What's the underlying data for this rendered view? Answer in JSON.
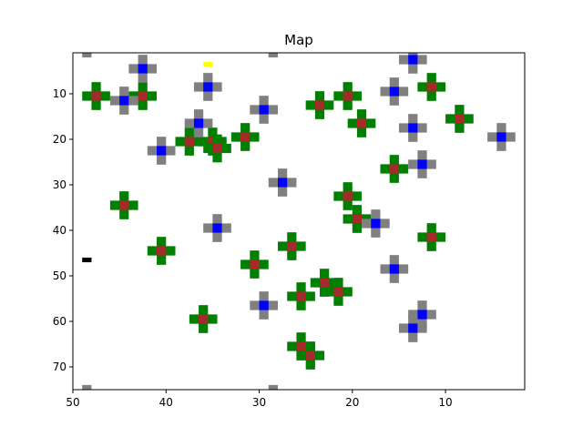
{
  "title": "Map",
  "x_axis": {
    "ticks": [
      50,
      40,
      30,
      20,
      10
    ],
    "range": [
      50,
      1.5
    ],
    "inverted": true
  },
  "y_axis": {
    "ticks": [
      10,
      20,
      30,
      40,
      50,
      60,
      70
    ],
    "range": [
      1,
      75
    ],
    "inverted": true
  },
  "colors": {
    "green_cross": "#008000",
    "green_center": "#a52a2a",
    "gray_cross": "#808080",
    "gray_center": "#0000ff",
    "yellow_marker": "#ffff00",
    "black_marker": "#000000"
  },
  "chart_data": {
    "type": "scatter",
    "title": "Map",
    "xlim": [
      50,
      1.5
    ],
    "ylim": [
      75,
      1
    ],
    "grid": false,
    "series": [
      {
        "marker": "green-cross",
        "points": [
          [
            47.5,
            10.5
          ],
          [
            42.5,
            10.5
          ],
          [
            37.5,
            20.5
          ],
          [
            35,
            20.5
          ],
          [
            34.5,
            22
          ],
          [
            31.5,
            19.5
          ],
          [
            23.5,
            12.5
          ],
          [
            20.5,
            10.5
          ],
          [
            19,
            16.5
          ],
          [
            11.5,
            8.5
          ],
          [
            8.5,
            15.5
          ],
          [
            15.5,
            26.5
          ],
          [
            44.5,
            34.5
          ],
          [
            20.5,
            32.5
          ],
          [
            19.5,
            37.5
          ],
          [
            11.5,
            41.5
          ],
          [
            40.5,
            44.5
          ],
          [
            26.5,
            43.5
          ],
          [
            30.5,
            47.5
          ],
          [
            23,
            51.5
          ],
          [
            25.5,
            54.5
          ],
          [
            21.5,
            53.5
          ],
          [
            36,
            59.5
          ],
          [
            25.5,
            65.5
          ],
          [
            24.5,
            67.5
          ]
        ]
      },
      {
        "marker": "gray-cross",
        "points": [
          [
            42.5,
            4.5
          ],
          [
            44.5,
            11.5
          ],
          [
            35.5,
            8.5
          ],
          [
            36.5,
            16.5
          ],
          [
            40.5,
            22.5
          ],
          [
            29.5,
            13.5
          ],
          [
            15.5,
            9.5
          ],
          [
            13.5,
            2.5
          ],
          [
            13.5,
            17.5
          ],
          [
            4,
            19.5
          ],
          [
            12.5,
            25.5
          ],
          [
            27.5,
            29.5
          ],
          [
            34.5,
            39.5
          ],
          [
            17.5,
            38.5
          ],
          [
            15.5,
            48.5
          ],
          [
            29.5,
            56.5
          ],
          [
            12.5,
            58.5
          ],
          [
            13.5,
            61.5
          ]
        ]
      },
      {
        "marker": "edge-gray",
        "points": [
          [
            48.5,
            1
          ],
          [
            28.5,
            1
          ],
          [
            48.5,
            75
          ],
          [
            28.5,
            75
          ]
        ]
      },
      {
        "marker": "yellow",
        "points": [
          [
            35.5,
            3.5
          ]
        ]
      },
      {
        "marker": "black",
        "points": [
          [
            48.5,
            46.5
          ]
        ]
      }
    ]
  }
}
